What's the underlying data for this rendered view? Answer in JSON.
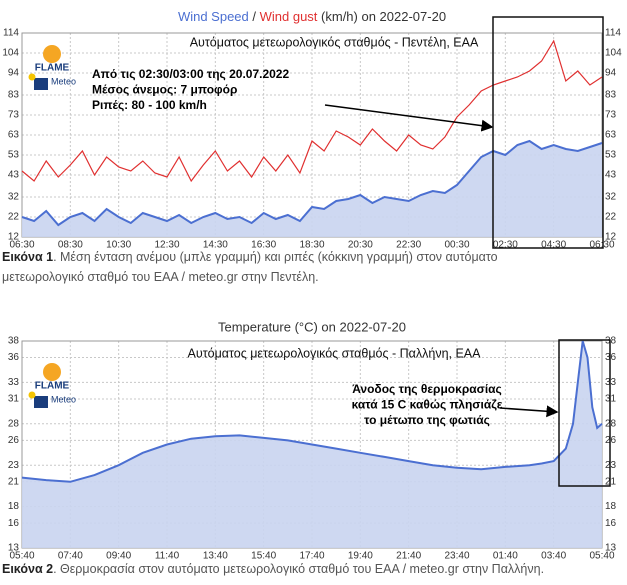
{
  "chart_data": [
    {
      "type": "area",
      "title_separator": " / ",
      "title_rest": " (km/h) on 2022-07-20",
      "subtitle": "Αυτόματος μετεωρολογικός σταθμός - Πεντέλη, ΕΑΑ",
      "annotation": [
        "Από τις 02:30/03:00 της 20.07.2022",
        "Μέσος άνεμος: 7 μποφόρ",
        "Ριπές: 80 - 100 km/h"
      ],
      "logo_texts": [
        "FLAME",
        "Meteo"
      ],
      "x": [
        0,
        0.5,
        1,
        1.5,
        2,
        2.5,
        3,
        3.5,
        4,
        4.5,
        5,
        5.5,
        6,
        6.5,
        7,
        7.5,
        8,
        8.5,
        9,
        9.5,
        10,
        10.5,
        11,
        11.5,
        12,
        12.5,
        13,
        13.5,
        14,
        14.5,
        15,
        15.5,
        16,
        16.5,
        17,
        17.5,
        18,
        18.5,
        19,
        19.5,
        20,
        20.5,
        21,
        21.5,
        22,
        22.5,
        23,
        23.5,
        24
      ],
      "series": [
        {
          "name": "Wind Speed",
          "color": "#4b6fd1",
          "fill": true,
          "values": [
            22,
            20,
            25,
            18,
            22,
            24,
            20,
            26,
            22,
            19,
            24,
            22,
            20,
            23,
            19,
            22,
            24,
            21,
            22,
            19,
            24,
            21,
            23,
            20,
            27,
            26,
            30,
            31,
            33,
            29,
            32,
            31,
            30,
            33,
            35,
            34,
            38,
            45,
            52,
            55,
            53,
            58,
            60,
            56,
            58,
            56,
            55,
            57,
            59
          ]
        },
        {
          "name": "Wind gust",
          "color": "#e03030",
          "fill": false,
          "values": [
            45,
            40,
            50,
            42,
            48,
            55,
            43,
            52,
            47,
            45,
            50,
            44,
            42,
            52,
            40,
            48,
            55,
            45,
            50,
            42,
            52,
            45,
            53,
            44,
            60,
            55,
            65,
            62,
            58,
            66,
            60,
            55,
            63,
            58,
            56,
            62,
            72,
            78,
            85,
            88,
            90,
            92,
            95,
            100,
            110,
            90,
            95,
            88,
            92
          ]
        }
      ],
      "xlim": [
        0,
        24
      ],
      "xticks": [
        {
          "value": 0,
          "label": "06:30"
        },
        {
          "value": 2,
          "label": "08:30"
        },
        {
          "value": 4,
          "label": "10:30"
        },
        {
          "value": 6,
          "label": "12:30"
        },
        {
          "value": 8,
          "label": "14:30"
        },
        {
          "value": 10,
          "label": "16:30"
        },
        {
          "value": 12,
          "label": "18:30"
        },
        {
          "value": 14,
          "label": "20:30"
        },
        {
          "value": 16,
          "label": "22:30"
        },
        {
          "value": 18,
          "label": "00:30"
        },
        {
          "value": 20,
          "label": "02:30"
        },
        {
          "value": 22,
          "label": "04:30"
        },
        {
          "value": 24,
          "label": "06:30"
        }
      ],
      "ylim": [
        12,
        114
      ],
      "yticks": [
        12,
        22,
        32,
        43,
        53,
        63,
        73,
        83,
        94,
        104,
        114
      ],
      "grid": true
    },
    {
      "type": "area",
      "title": "Temperature (°C) on 2022-07-20",
      "subtitle": "Αυτόματος μετεωρολογικός σταθμός - Παλλήνη, ΕΑΑ",
      "annotation": [
        "Άνοδος της θερμοκρασίας",
        "κατά 15 C καθώς πλησιάζε",
        "το μέτωπο της φωτιάς"
      ],
      "logo_texts": [
        "FLAME",
        "Meteo"
      ],
      "x": [
        0,
        1,
        2,
        3,
        4,
        5,
        6,
        7,
        8,
        9,
        10,
        11,
        12,
        13,
        14,
        15,
        16,
        17,
        18,
        19,
        20,
        21,
        21.5,
        22,
        22.5,
        22.8,
        23,
        23.2,
        23.4,
        23.6,
        23.8,
        24
      ],
      "series": [
        {
          "name": "Temperature",
          "color": "#4b6fd1",
          "fill": true,
          "values": [
            21.5,
            21.2,
            21,
            21.8,
            23,
            24.5,
            25.5,
            26.2,
            26.5,
            26.6,
            26.3,
            26,
            25.5,
            25,
            24.5,
            24,
            23.5,
            23,
            22.7,
            22.5,
            22.8,
            23,
            23.2,
            23.5,
            25,
            28,
            33,
            38,
            36,
            30,
            27.5,
            28
          ]
        }
      ],
      "xlim": [
        0,
        24
      ],
      "xticks": [
        {
          "value": 0,
          "label": "05:40"
        },
        {
          "value": 2,
          "label": "07:40"
        },
        {
          "value": 4,
          "label": "09:40"
        },
        {
          "value": 6,
          "label": "11:40"
        },
        {
          "value": 8,
          "label": "13:40"
        },
        {
          "value": 10,
          "label": "15:40"
        },
        {
          "value": 12,
          "label": "17:40"
        },
        {
          "value": 14,
          "label": "19:40"
        },
        {
          "value": 16,
          "label": "21:40"
        },
        {
          "value": 18,
          "label": "23:40"
        },
        {
          "value": 20,
          "label": "01:40"
        },
        {
          "value": 22,
          "label": "03:40"
        },
        {
          "value": 24,
          "label": "05:40"
        }
      ],
      "ylim": [
        13,
        38
      ],
      "yticks": [
        13,
        16,
        18,
        21,
        23,
        26,
        28,
        31,
        33,
        36,
        38
      ],
      "grid": true
    }
  ],
  "captions": [
    {
      "label": "Εικόνα 1",
      "lines": [
        ". Μέση ένταση ανέμου (μπλε γραμμή) και ριπές (κόκκινη γραμμή) στον αυτόματο",
        "μετεωρολογικό σταθμό του ΕΑΑ / meteo.gr στην Πεντέλη."
      ]
    },
    {
      "label": "Εικόνα 2",
      "lines": [
        ". Θερμοκρασία στον αυτόματο μετεωρολογικό σταθμό του ΕΑΑ / meteo.gr στην Παλλήνη."
      ]
    }
  ]
}
